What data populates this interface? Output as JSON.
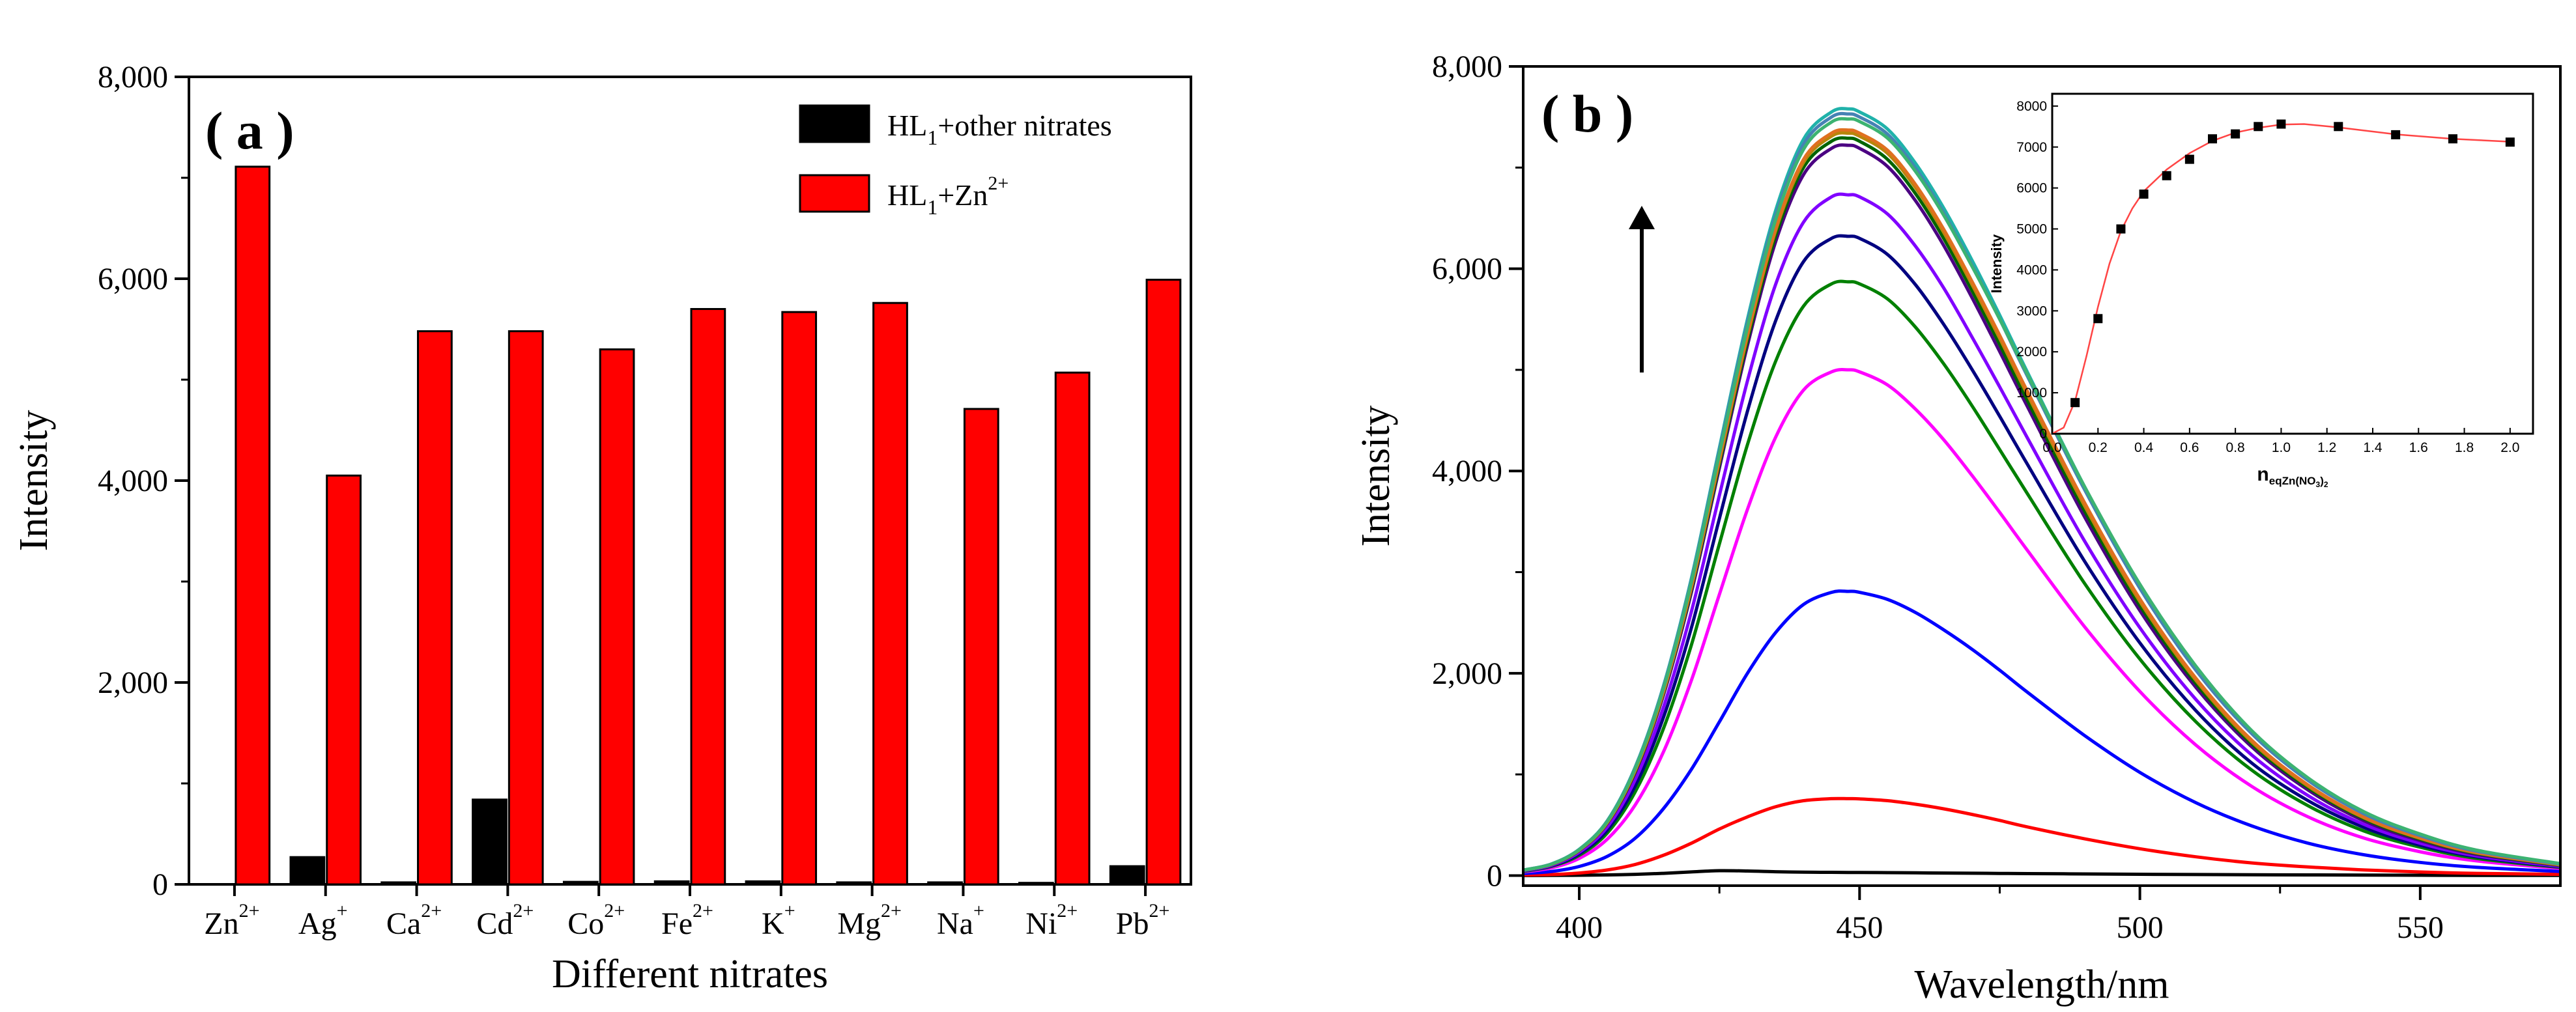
{
  "chart_data": [
    {
      "id": "a",
      "type": "bar",
      "panel_label": "( a )",
      "xlabel": "Different nitrates",
      "ylabel": "Intensity",
      "ylim": [
        0,
        8000
      ],
      "yticks": [
        0,
        2000,
        4000,
        6000,
        8000
      ],
      "ytick_labels": [
        "0",
        "2,000",
        "4,000",
        "6,000",
        "8,000"
      ],
      "categories": [
        {
          "base": "Zn",
          "sup": "2+"
        },
        {
          "base": "Ag",
          "sup": "+"
        },
        {
          "base": "Ca",
          "sup": "2+"
        },
        {
          "base": "Cd",
          "sup": "2+"
        },
        {
          "base": "Co",
          "sup": "2+"
        },
        {
          "base": "Fe",
          "sup": "2+"
        },
        {
          "base": "K",
          "sup": "+"
        },
        {
          "base": "Mg",
          "sup": "2+"
        },
        {
          "base": "Na",
          "sup": "+"
        },
        {
          "base": "Ni",
          "sup": "2+"
        },
        {
          "base": "Pb",
          "sup": "2+"
        }
      ],
      "series": [
        {
          "name": "HL1+other nitrates",
          "name_parts": {
            "base": "HL",
            "sub": "1",
            "rest": "+other nitrates"
          },
          "color": "#000000",
          "values": [
            null,
            270,
            20,
            840,
            25,
            30,
            30,
            20,
            20,
            15,
            180
          ]
        },
        {
          "name": "HL1+Zn2+",
          "name_parts": {
            "base": "HL",
            "sub": "1",
            "rest": "+Zn",
            "sup": "2+"
          },
          "color": "#ff0000",
          "values": [
            7110,
            4050,
            5480,
            5480,
            5300,
            5700,
            5670,
            5760,
            4710,
            5070,
            5990
          ]
        }
      ],
      "legend_position": "top-right",
      "grid": false
    },
    {
      "id": "b",
      "type": "line",
      "panel_label": "( b )",
      "xlabel": "Wavelength/nm",
      "ylabel": "Intensity",
      "xlim": [
        390,
        575
      ],
      "ylim": [
        -100,
        8000
      ],
      "xticks": [
        400,
        450,
        500,
        550
      ],
      "yticks": [
        0,
        2000,
        4000,
        6000,
        8000
      ],
      "ytick_labels": [
        "0",
        "2,000",
        "4,000",
        "6,000",
        "8,000"
      ],
      "x": [
        390,
        395,
        400,
        405,
        410,
        415,
        420,
        425,
        430,
        435,
        440,
        445,
        448,
        450,
        455,
        460,
        465,
        470,
        475,
        480,
        490,
        500,
        510,
        520,
        530,
        540,
        550,
        560,
        575
      ],
      "peak_wavelength": 448,
      "series": [
        {
          "color": "#000000",
          "values": [
            0,
            1,
            3,
            6,
            12,
            22,
            36,
            48,
            45,
            38,
            33,
            32,
            31,
            30,
            29,
            27,
            25,
            23,
            21,
            19,
            16,
            13,
            10,
            8,
            6,
            5,
            3,
            2,
            1
          ]
        },
        {
          "color": "#ff0000",
          "values": [
            5,
            10,
            25,
            55,
            110,
            200,
            320,
            460,
            580,
            680,
            740,
            760,
            760,
            758,
            740,
            705,
            660,
            605,
            545,
            480,
            365,
            265,
            185,
            125,
            85,
            55,
            35,
            22,
            12
          ]
        },
        {
          "color": "#0000ff",
          "values": [
            20,
            40,
            90,
            190,
            370,
            660,
            1050,
            1520,
            2000,
            2400,
            2680,
            2800,
            2810,
            2800,
            2730,
            2600,
            2430,
            2240,
            2030,
            1810,
            1390,
            1020,
            720,
            490,
            320,
            205,
            130,
            82,
            40
          ]
        },
        {
          "color": "#ff00ff",
          "values": [
            35,
            75,
            170,
            360,
            700,
            1220,
            1930,
            2780,
            3620,
            4330,
            4800,
            4980,
            5000,
            4980,
            4850,
            4610,
            4310,
            3960,
            3590,
            3210,
            2470,
            1820,
            1290,
            880,
            580,
            370,
            235,
            145,
            70
          ]
        },
        {
          "color": "#008000",
          "values": [
            40,
            90,
            200,
            420,
            830,
            1450,
            2280,
            3280,
            4260,
            5080,
            5630,
            5850,
            5870,
            5850,
            5700,
            5420,
            5060,
            4650,
            4210,
            3770,
            2900,
            2140,
            1520,
            1040,
            690,
            440,
            280,
            170,
            80
          ]
        },
        {
          "color": "#000080",
          "values": [
            45,
            95,
            215,
            450,
            890,
            1560,
            2450,
            3530,
            4590,
            5480,
            6070,
            6300,
            6320,
            6300,
            6140,
            5840,
            5450,
            5010,
            4540,
            4060,
            3120,
            2300,
            1630,
            1110,
            740,
            475,
            300,
            185,
            85
          ]
        },
        {
          "color": "#8000ff",
          "values": [
            48,
            100,
            230,
            480,
            950,
            1660,
            2610,
            3760,
            4890,
            5840,
            6460,
            6710,
            6730,
            6710,
            6540,
            6220,
            5810,
            5330,
            4830,
            4320,
            3320,
            2450,
            1740,
            1190,
            790,
            505,
            320,
            195,
            90
          ]
        },
        {
          "color": "#4b0082",
          "values": [
            52,
            108,
            247,
            516,
            1020,
            1780,
            2800,
            4030,
            5240,
            6260,
            6930,
            7190,
            7220,
            7190,
            7010,
            6670,
            6230,
            5720,
            5180,
            4630,
            3560,
            2620,
            1860,
            1270,
            845,
            540,
            345,
            210,
            98
          ]
        },
        {
          "color": "#006400",
          "values": [
            52,
            109,
            249,
            520,
            1030,
            1800,
            2830,
            4070,
            5290,
            6320,
            7000,
            7260,
            7290,
            7260,
            7080,
            6740,
            6300,
            5790,
            5250,
            4690,
            3620,
            2670,
            1900,
            1300,
            870,
            560,
            360,
            220,
            102
          ]
        },
        {
          "color": "#b8860b",
          "values": [
            53,
            110,
            251,
            524,
            1040,
            1810,
            2850,
            4100,
            5330,
            6370,
            7050,
            7310,
            7340,
            7310,
            7140,
            6800,
            6360,
            5850,
            5310,
            4750,
            3670,
            2710,
            1930,
            1320,
            885,
            570,
            368,
            225,
            105
          ]
        },
        {
          "color": "#e07020",
          "values": [
            53,
            110,
            252,
            526,
            1045,
            1820,
            2860,
            4120,
            5350,
            6390,
            7080,
            7340,
            7370,
            7340,
            7170,
            6830,
            6390,
            5880,
            5340,
            4780,
            3700,
            2735,
            1950,
            1335,
            895,
            577,
            373,
            228,
            107
          ]
        },
        {
          "color": "#20b2aa",
          "values": [
            55,
            114,
            260,
            542,
            1075,
            1870,
            2940,
            4230,
            5500,
            6570,
            7280,
            7550,
            7580,
            7550,
            7380,
            7040,
            6600,
            6090,
            5540,
            4970,
            3860,
            2860,
            2050,
            1410,
            950,
            615,
            400,
            245,
            115
          ]
        },
        {
          "color": "#4682b4",
          "values": [
            54,
            113,
            258,
            538,
            1068,
            1860,
            2920,
            4200,
            5460,
            6520,
            7230,
            7500,
            7530,
            7500,
            7330,
            6990,
            6550,
            6040,
            5500,
            4930,
            3830,
            2840,
            2030,
            1400,
            940,
            610,
            395,
            242,
            113
          ]
        },
        {
          "color": "#3cb371",
          "values": [
            54,
            112,
            256,
            534,
            1060,
            1845,
            2900,
            4170,
            5420,
            6480,
            7180,
            7450,
            7480,
            7455,
            7290,
            6960,
            6530,
            6030,
            5500,
            4950,
            3860,
            2880,
            2070,
            1430,
            965,
            630,
            410,
            252,
            118
          ]
        }
      ],
      "annotation": "up-arrow",
      "legend_position": "none",
      "grid": false,
      "inset": {
        "type": "scatter+line",
        "ylabel": "Intensity",
        "xlabel": {
          "base": "n",
          "sub": "eqZn(NO",
          "sub2": "3",
          "sub3": ")",
          "sub4": "2"
        },
        "xlim": [
          0,
          2.1
        ],
        "ylim": [
          0,
          8300
        ],
        "xticks": [
          0.0,
          0.2,
          0.4,
          0.6,
          0.8,
          1.0,
          1.2,
          1.4,
          1.6,
          1.8,
          2.0
        ],
        "xtick_labels": [
          "0.0",
          "0.2",
          "0.4",
          "0.6",
          "0.8",
          "1.0",
          "1.2",
          "1.4",
          "1.6",
          "1.8",
          "2.0"
        ],
        "yticks": [
          0,
          1000,
          2000,
          3000,
          4000,
          5000,
          6000,
          7000,
          8000
        ],
        "points_x": [
          0.1,
          0.2,
          0.3,
          0.4,
          0.5,
          0.6,
          0.7,
          0.8,
          0.9,
          1.0,
          1.25,
          1.5,
          1.75,
          2.0
        ],
        "points_y": [
          760,
          2810,
          5000,
          5850,
          6300,
          6700,
          7200,
          7320,
          7500,
          7560,
          7500,
          7300,
          7200,
          7120
        ],
        "fit_x": [
          0.0,
          0.05,
          0.1,
          0.15,
          0.2,
          0.25,
          0.3,
          0.35,
          0.4,
          0.5,
          0.6,
          0.7,
          0.8,
          0.9,
          1.0,
          1.1,
          1.25,
          1.5,
          1.75,
          2.0
        ],
        "fit_y": [
          0,
          150,
          800,
          1900,
          3100,
          4150,
          4950,
          5500,
          5920,
          6450,
          6850,
          7150,
          7350,
          7470,
          7550,
          7560,
          7480,
          7310,
          7200,
          7130
        ],
        "point_color": "#000000",
        "fit_color": "#ff4444"
      }
    }
  ]
}
